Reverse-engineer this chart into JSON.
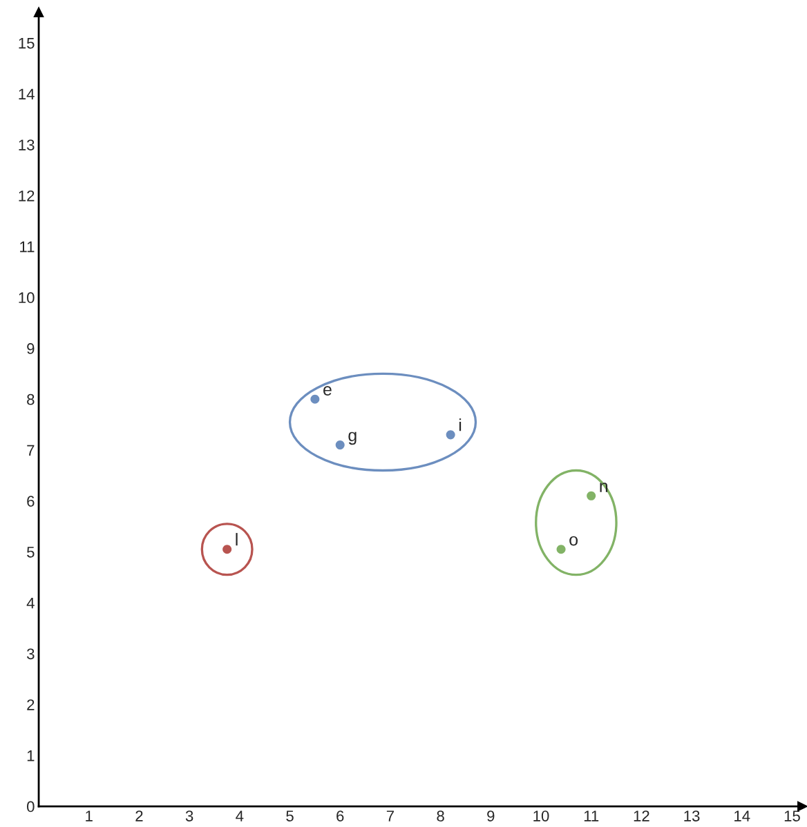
{
  "chart_data": {
    "type": "scatter",
    "series": [
      {
        "color": "#6c8ebf",
        "x": [
          5.5,
          6.0,
          8.2
        ],
        "values": [
          8.0,
          7.1,
          7.3
        ]
      },
      {
        "color": "#b85450",
        "x": [
          3.75
        ],
        "values": [
          5.05
        ]
      },
      {
        "color": "#82b366",
        "x": [
          11.0,
          10.4
        ],
        "values": [
          6.1,
          5.05
        ]
      }
    ],
    "annotations": [
      {
        "text": "e",
        "x": 5.5,
        "y": 8.0
      },
      {
        "text": "g",
        "x": 6.0,
        "y": 7.1
      },
      {
        "text": "i",
        "x": 8.2,
        "y": 7.3
      },
      {
        "text": "l",
        "x": 3.75,
        "y": 5.05
      },
      {
        "text": "n",
        "x": 11.0,
        "y": 6.1
      },
      {
        "text": "o",
        "x": 10.4,
        "y": 5.05
      }
    ],
    "xlim": [
      0,
      15.2
    ],
    "ylim": [
      0,
      15.6
    ],
    "xticks": [
      1,
      2,
      3,
      4,
      5,
      6,
      7,
      8,
      9,
      10,
      11,
      12,
      13,
      14,
      15
    ],
    "yticks": [
      0,
      1,
      2,
      3,
      4,
      5,
      6,
      7,
      8,
      9,
      10,
      11,
      12,
      13,
      14,
      15
    ],
    "grid": false,
    "marker": "circle"
  }
}
